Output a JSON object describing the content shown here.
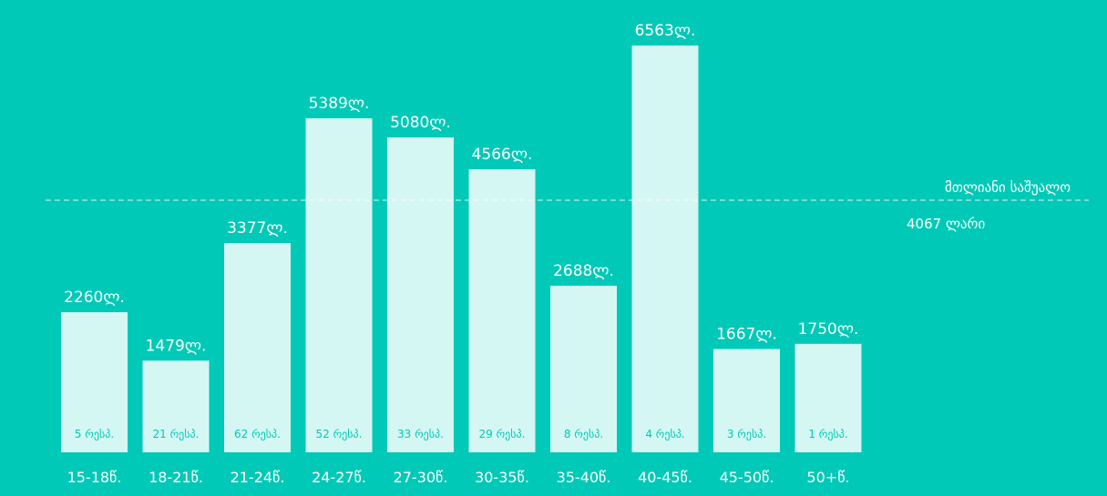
{
  "chart_data": {
    "type": "bar",
    "categories": [
      "15-18წ.",
      "18-21წ.",
      "21-24წ.",
      "24-27წ.",
      "27-30წ.",
      "30-35წ.",
      "35-40წ.",
      "40-45წ.",
      "45-50წ.",
      "50+წ."
    ],
    "values": [
      2260,
      1479,
      3377,
      5389,
      5080,
      4566,
      2688,
      6563,
      1667,
      1750
    ],
    "value_labels": [
      "2260ლ.",
      "1479ლ.",
      "3377ლ.",
      "5389ლ.",
      "5080ლ.",
      "4566ლ.",
      "2688ლ.",
      "6563ლ.",
      "1667ლ.",
      "1750ლ."
    ],
    "counts": [
      "5 რესპ.",
      "21 რესპ.",
      "62 რესპ.",
      "52 რესპ.",
      "33 რესპ.",
      "29 რესპ.",
      "8 რესპ.",
      "4 რესპ.",
      "3 რესპ.",
      "1 რესპ."
    ],
    "reference_line": {
      "value": 4067,
      "label": "მთლიანი საშუალო",
      "value_label": "4067 ლარი"
    },
    "colors": {
      "background": "#00c9b7",
      "bar": "#d4f7f3",
      "text": "#ffffff",
      "count_text": "#00c9b7"
    }
  }
}
